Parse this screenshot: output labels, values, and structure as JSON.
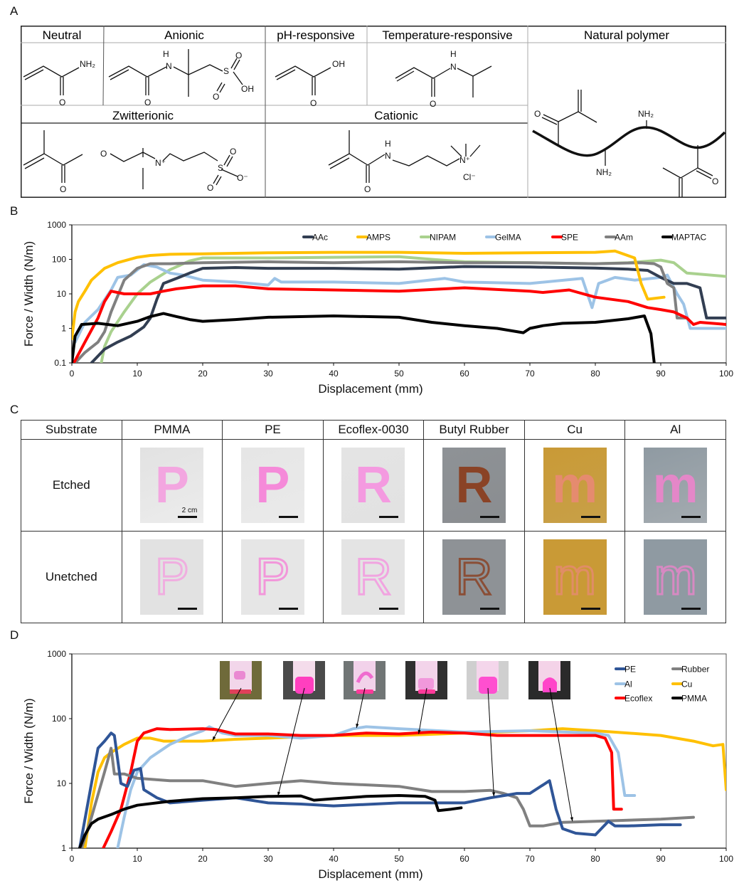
{
  "panel_labels": {
    "a": "A",
    "b": "B",
    "c": "C",
    "d": "D"
  },
  "panelA": {
    "headers": {
      "neutral": "Neutral",
      "anionic": "Anionic",
      "ph": "pH-responsive",
      "temperature": "Temperature-responsive",
      "natural": "Natural polymer",
      "zwitterionic": "Zwitterionic",
      "cationic": "Cationic"
    },
    "atoms": {
      "nh2": "NH₂",
      "o": "O",
      "h": "H",
      "n": "N",
      "s": "S",
      "oh": "OH",
      "o_minus": "O⁻",
      "n_plus": "N⁺",
      "cl_minus": "Cl⁻"
    }
  },
  "panelC": {
    "header_label": "Substrate",
    "row_labels": [
      "Etched",
      "Unetched"
    ],
    "substrates": [
      {
        "name": "PMMA",
        "letter": "P",
        "bg": "#e2e2e2",
        "gel": "#f3a6e0",
        "bg2": "#ececec"
      },
      {
        "name": "PE",
        "letter": "P",
        "bg": "#e6e6e6",
        "gel": "#f58ad9",
        "bg2": "#eaeaea"
      },
      {
        "name": "Ecoflex-0030",
        "letter": "R",
        "bg": "#e4e4e4",
        "gel": "#f49ae0",
        "bg2": "#e2e2e2"
      },
      {
        "name": "Butyl Rubber",
        "letter": "R",
        "bg": "#8e9296",
        "gel": "#8a4326",
        "bg2": "#8a8d90"
      },
      {
        "name": "Cu",
        "letter": "m",
        "bg": "#c99a36",
        "gel": "#e58b6f",
        "bg2": "#c8a048"
      },
      {
        "name": "Al",
        "letter": "m",
        "bg": "#8f9aa2",
        "gel": "#e487c8",
        "bg2": "#a4abb0"
      }
    ],
    "scale_bar_label": "2 cm",
    "unetched_dots": "•••"
  },
  "chart_data": [
    {
      "type": "line",
      "panel": "B",
      "title": "",
      "xlabel": "Displacement (mm)",
      "ylabel": "Force / Width (N/m)",
      "xlim": [
        0,
        100
      ],
      "ylim": [
        0.1,
        1000
      ],
      "yscale": "log",
      "xticks": [
        0,
        10,
        20,
        30,
        40,
        50,
        60,
        70,
        80,
        90,
        100
      ],
      "yticks": [
        0.1,
        1,
        10,
        100,
        1000
      ],
      "ytick_labels": [
        "0.1",
        "1",
        "10",
        "100",
        "1000"
      ],
      "legend_position": "top-right",
      "series": [
        {
          "name": "AAc",
          "color": "#323e52",
          "x": [
            3,
            5,
            7,
            9,
            11,
            12,
            13,
            14,
            16,
            18,
            20,
            25,
            30,
            40,
            50,
            60,
            70,
            80,
            85,
            88,
            90,
            92,
            94,
            96,
            97,
            100
          ],
          "y": [
            0.1,
            0.25,
            0.4,
            0.6,
            1.1,
            2,
            7,
            20,
            28,
            40,
            55,
            58,
            55,
            55,
            52,
            62,
            60,
            56,
            52,
            48,
            30,
            20,
            20,
            15,
            2,
            2
          ]
        },
        {
          "name": "AMPS",
          "color": "#ffc000",
          "x": [
            0,
            0.5,
            1,
            2,
            3,
            5,
            7,
            10,
            12,
            15,
            20,
            30,
            40,
            50,
            60,
            70,
            80,
            83,
            86,
            87,
            88,
            90.5
          ],
          "y": [
            0.5,
            3,
            6,
            12,
            25,
            55,
            80,
            115,
            130,
            140,
            145,
            155,
            160,
            160,
            150,
            155,
            160,
            175,
            110,
            20,
            7,
            8
          ]
        },
        {
          "name": "NIPAM",
          "color": "#a9d18e",
          "x": [
            4.5,
            5,
            6,
            8,
            10,
            12,
            15,
            18,
            20,
            30,
            40,
            50,
            55,
            60,
            70,
            80,
            85,
            90,
            92,
            94,
            100
          ],
          "y": [
            0.1,
            0.3,
            0.8,
            3,
            10,
            22,
            50,
            90,
            110,
            110,
            115,
            120,
            100,
            85,
            80,
            75,
            80,
            95,
            80,
            40,
            32
          ]
        },
        {
          "name": "GelMA",
          "color": "#9dc3e6",
          "x": [
            0.5,
            2,
            4,
            6,
            7,
            9,
            11,
            13,
            15,
            17,
            20,
            25,
            30,
            31,
            32,
            40,
            50,
            57,
            60,
            70,
            78,
            79.5,
            80.5,
            83,
            86,
            90,
            91,
            92.5,
            93.5,
            94.5,
            100
          ],
          "y": [
            0.4,
            1.5,
            3.5,
            13,
            30,
            35,
            70,
            60,
            40,
            35,
            25,
            22,
            18,
            28,
            22,
            22,
            20,
            28,
            22,
            20,
            28,
            4,
            20,
            30,
            25,
            30,
            35,
            10,
            5,
            1,
            1
          ]
        },
        {
          "name": "SPE",
          "color": "#ff0000",
          "x": [
            0.3,
            2,
            4,
            5,
            6,
            8,
            10,
            12,
            14,
            16,
            20,
            25,
            30,
            40,
            50,
            60,
            70,
            72,
            76,
            80,
            85,
            88,
            90,
            92,
            94,
            95,
            96,
            100
          ],
          "y": [
            0.1,
            0.4,
            2,
            6,
            12,
            10,
            10,
            10,
            12,
            14,
            17,
            17,
            14,
            13,
            12,
            15,
            12,
            11,
            13,
            8,
            6,
            4,
            3.5,
            3,
            2,
            1.3,
            1.5,
            1.3
          ]
        },
        {
          "name": "AAm",
          "color": "#808080",
          "x": [
            0.5,
            2,
            4,
            5,
            6,
            8,
            10,
            12,
            15,
            20,
            30,
            40,
            50,
            60,
            70,
            80,
            87,
            89,
            90,
            91,
            92,
            92.5,
            94
          ],
          "y": [
            0.1,
            0.2,
            0.4,
            0.8,
            3,
            25,
            55,
            75,
            75,
            80,
            85,
            80,
            85,
            80,
            80,
            75,
            80,
            75,
            60,
            20,
            15,
            2,
            2
          ]
        },
        {
          "name": "MAPTAC",
          "color": "#000000",
          "x": [
            0,
            0.5,
            1.5,
            4,
            7,
            10,
            12,
            14,
            16,
            18,
            20,
            25,
            30,
            40,
            50,
            55,
            60,
            65,
            69,
            70,
            72,
            75,
            80,
            85,
            87.5,
            88.5,
            89
          ],
          "y": [
            0.1,
            0.6,
            1.3,
            1.4,
            1.2,
            1.6,
            2.2,
            2.7,
            2.2,
            1.8,
            1.6,
            1.8,
            2.1,
            2.3,
            2.1,
            1.5,
            1.2,
            1.0,
            0.75,
            1.0,
            1.2,
            1.4,
            1.5,
            1.9,
            2.3,
            0.7,
            0.1
          ]
        }
      ]
    },
    {
      "type": "line",
      "panel": "D",
      "title": "",
      "xlabel": "Displacement (mm)",
      "ylabel": "Force / Width (N/m)",
      "xlim": [
        0,
        100
      ],
      "ylim": [
        1,
        1000
      ],
      "yscale": "log",
      "xticks": [
        0,
        10,
        20,
        30,
        40,
        50,
        60,
        70,
        80,
        90,
        100
      ],
      "yticks": [
        1,
        10,
        100,
        1000
      ],
      "ytick_labels": [
        "1",
        "10",
        "100",
        "1000"
      ],
      "legend_position": "top-right",
      "series": [
        {
          "name": "PE",
          "color": "#2f5597",
          "x": [
            1.2,
            3,
            4,
            5,
            6,
            6.5,
            7.5,
            8.5,
            9.5,
            10.5,
            11,
            13,
            15,
            20,
            25,
            30,
            35,
            40,
            50,
            55,
            58,
            60,
            64,
            68,
            70,
            73,
            74,
            75,
            77,
            80,
            82,
            83,
            85,
            90,
            93
          ],
          "y": [
            1,
            10,
            35,
            45,
            60,
            55,
            10,
            9,
            16,
            17,
            8,
            6,
            5,
            5.5,
            6,
            5,
            4.8,
            4.5,
            5,
            5,
            5,
            5,
            6,
            7,
            7,
            11,
            4,
            2,
            1.7,
            1.6,
            2.6,
            2.2,
            2.2,
            2.3,
            2.3
          ]
        },
        {
          "name": "Rubber",
          "color": "#808080",
          "x": [
            1.5,
            3,
            5,
            6,
            6.5,
            8,
            10,
            15,
            20,
            25,
            30,
            35,
            40,
            50,
            55,
            60,
            64,
            66,
            68,
            69,
            70,
            72,
            75,
            80,
            90,
            95
          ],
          "y": [
            1,
            3,
            15,
            35,
            14,
            14,
            12,
            11,
            11,
            9,
            10,
            11,
            10,
            9,
            7.5,
            7.5,
            7.8,
            7,
            6,
            4,
            2.2,
            2.2,
            2.5,
            2.6,
            2.8,
            3
          ]
        },
        {
          "name": "Al",
          "color": "#9dc3e6",
          "x": [
            7,
            8,
            9,
            10,
            12,
            15,
            18,
            20,
            21,
            23,
            25,
            30,
            35,
            40,
            43,
            45,
            50,
            60,
            70,
            80,
            82,
            83.5,
            84.5,
            86
          ],
          "y": [
            1,
            3,
            8,
            15,
            25,
            40,
            55,
            65,
            75,
            60,
            55,
            55,
            50,
            55,
            70,
            75,
            70,
            62,
            65,
            60,
            55,
            30,
            6.5,
            6.5
          ]
        },
        {
          "name": "Cu",
          "color": "#ffc000",
          "x": [
            2,
            3,
            4,
            5,
            6,
            8,
            10,
            12,
            14,
            20,
            25,
            30,
            40,
            50,
            60,
            65,
            70,
            75,
            80,
            85,
            90,
            95,
            98,
            99.5,
            100
          ],
          "y": [
            1,
            5,
            15,
            25,
            30,
            40,
            50,
            50,
            45,
            45,
            48,
            50,
            55,
            55,
            60,
            62,
            65,
            70,
            65,
            60,
            55,
            45,
            38,
            40,
            8
          ]
        },
        {
          "name": "Ecoflex",
          "color": "#ff0000",
          "x": [
            4.8,
            6,
            7.5,
            9,
            10,
            11,
            13,
            15,
            20,
            22,
            25,
            30,
            35,
            40,
            45,
            50,
            55,
            60,
            65,
            70,
            75,
            80,
            81.5,
            82.5,
            82.8,
            84
          ],
          "y": [
            1,
            1.8,
            4,
            15,
            45,
            60,
            70,
            68,
            70,
            68,
            58,
            58,
            55,
            55,
            60,
            58,
            62,
            60,
            55,
            55,
            55,
            55,
            50,
            30,
            4,
            4
          ]
        },
        {
          "name": "PMMA",
          "color": "#000000",
          "x": [
            1.2,
            2,
            3,
            4,
            6,
            8,
            10,
            15,
            20,
            25,
            30,
            35,
            37,
            40,
            45,
            50,
            54,
            55.5,
            56,
            58,
            59.5
          ],
          "y": [
            1,
            1.6,
            2.4,
            2.8,
            3.3,
            4,
            4.6,
            5.3,
            5.8,
            6,
            6.3,
            6.4,
            5.5,
            5.8,
            6.3,
            6.5,
            6.3,
            5.5,
            3.8,
            4,
            4.2
          ]
        }
      ],
      "insets": [
        {
          "name": "Cu inset",
          "bg": "#6f6a3a",
          "paper": "#f2d6ea",
          "gel": "#e766c7",
          "gel_shape": "partial",
          "arrow_to": [
            21.5,
            46
          ]
        },
        {
          "name": "PMMA inset",
          "bg": "#4a4a4a",
          "paper": "#f4dceb",
          "gel": "#ff3fbf",
          "gel_shape": "full",
          "arrow_to": [
            31.5,
            6.4
          ]
        },
        {
          "name": "Al inset",
          "bg": "#707575",
          "paper": "#f2d2ea",
          "gel": "#ef6ccf",
          "gel_shape": "ring",
          "arrow_to": [
            43.5,
            72
          ]
        },
        {
          "name": "Ecoflex inset",
          "bg": "#303030",
          "paper": "#f3d4ea",
          "gel": "#f05ccb",
          "gel_shape": "faint",
          "arrow_to": [
            53,
            58
          ]
        },
        {
          "name": "PE inset",
          "bg": "#cfcfcf",
          "paper": "#f4d6eb",
          "gel": "#ff4fd0",
          "gel_shape": "full",
          "arrow_to": [
            64.5,
            6.3
          ]
        },
        {
          "name": "Rubber inset",
          "bg": "#2a2a2a",
          "paper": "#f4d3e8",
          "gel": "#ff44c9",
          "gel_shape": "arch",
          "arrow_to": [
            76.5,
            2.6
          ]
        }
      ]
    }
  ]
}
